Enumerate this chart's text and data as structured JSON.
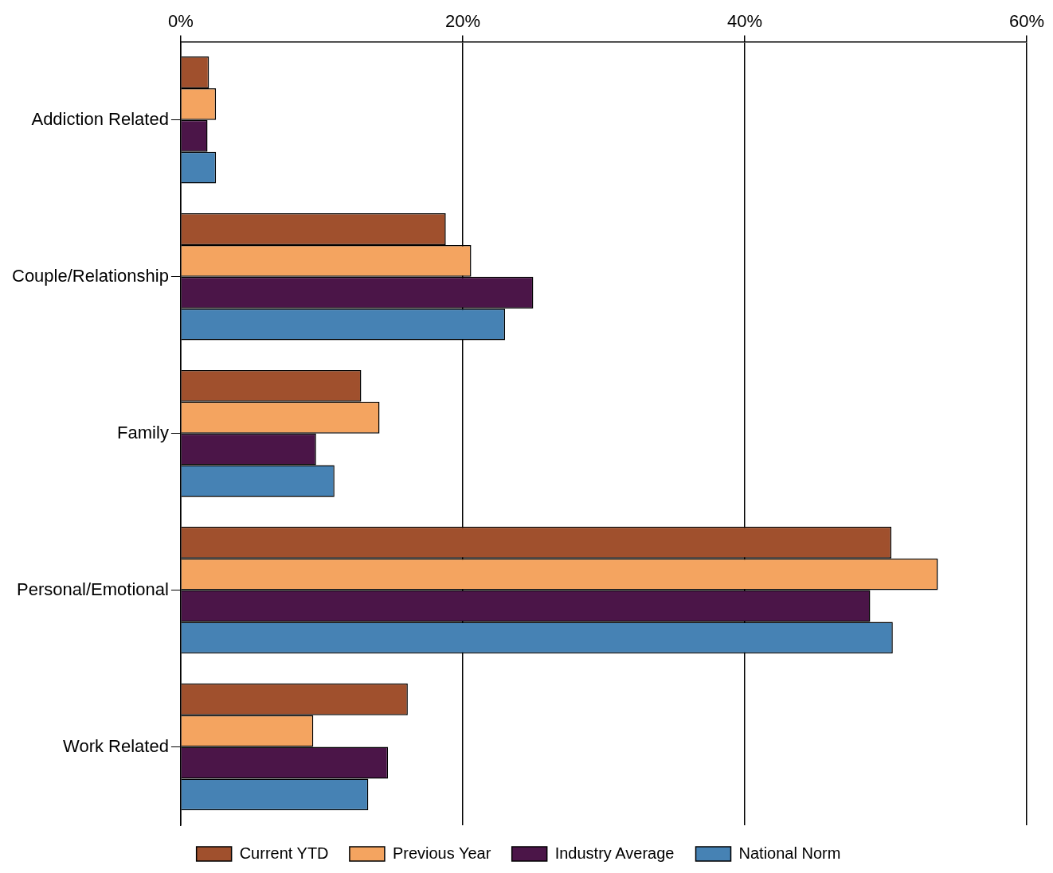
{
  "chart_data": {
    "type": "bar",
    "orientation": "horizontal",
    "categories": [
      "Addiction Related",
      "Couple/Relationship",
      "Family",
      "Personal/Emotional",
      "Work Related"
    ],
    "series": [
      {
        "name": "Current YTD",
        "color": "#a0502d",
        "values": [
          2.0,
          18.8,
          12.8,
          50.4,
          16.1
        ]
      },
      {
        "name": "Previous Year",
        "color": "#f4a460",
        "values": [
          2.5,
          20.6,
          14.1,
          53.7,
          9.4
        ]
      },
      {
        "name": "Industry Average",
        "color": "#4b1548",
        "values": [
          1.9,
          25.0,
          9.6,
          48.9,
          14.7
        ]
      },
      {
        "name": "National Norm",
        "color": "#4682b4",
        "values": [
          2.5,
          23.0,
          10.9,
          50.5,
          13.3
        ]
      }
    ],
    "xlim": [
      0,
      60
    ],
    "xticks": [
      {
        "value": 0,
        "label": "0%"
      },
      {
        "value": 20,
        "label": "20%"
      },
      {
        "value": 40,
        "label": "40%"
      },
      {
        "value": 60,
        "label": "60%"
      }
    ],
    "grid": "x",
    "legend": "bottom"
  }
}
